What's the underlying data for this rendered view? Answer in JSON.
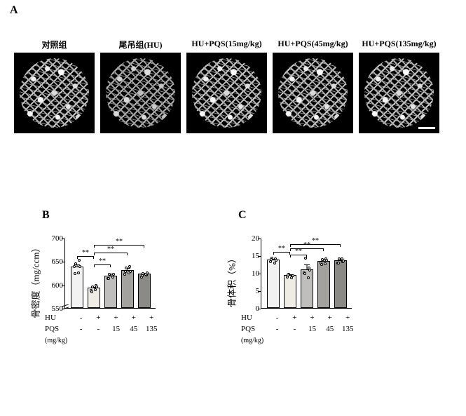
{
  "panels": {
    "A": {
      "label": "A"
    },
    "B": {
      "label": "B"
    },
    "C": {
      "label": "C"
    }
  },
  "panelA": {
    "labels": [
      "对照组",
      "尾吊组(HU)",
      "HU+PQS(15mg/kg)",
      "HU+PQS(45mg/kg)",
      "HU+PQS(135mg/kg)"
    ]
  },
  "chartB": {
    "type": "bar",
    "ylabel": "骨密度（mg/ccm）",
    "ylim": [
      550,
      700
    ],
    "yticks": [
      550,
      600,
      650,
      700
    ],
    "axis_break": true,
    "categories_hu": [
      "-",
      "+",
      "+",
      "+",
      "+"
    ],
    "categories_pqs": [
      "-",
      "-",
      "15",
      "45",
      "135"
    ],
    "row_labels": [
      "HU",
      "PQS",
      "(mg/kg)"
    ],
    "values": [
      638,
      593,
      619,
      631,
      623
    ],
    "errors": [
      6,
      4,
      4,
      6,
      3
    ],
    "bar_colors": [
      "#f2f2f2",
      "#efece6",
      "#c0bebc",
      "#a4a29f",
      "#8c8a87"
    ],
    "bar_border": "#000000",
    "scatter_points": [
      [
        646,
        654,
        640,
        626,
        625,
        640
      ],
      [
        596,
        600,
        589,
        590,
        586,
        597
      ],
      [
        624,
        617,
        614,
        622,
        614,
        623
      ],
      [
        637,
        640,
        623,
        626,
        630,
        630
      ],
      [
        625,
        622,
        618,
        624,
        621,
        627
      ]
    ],
    "sig": [
      {
        "from": 0,
        "to": 1,
        "y": 662,
        "label": "**"
      },
      {
        "from": 1,
        "to": 2,
        "y": 644,
        "label": "**"
      },
      {
        "from": 1,
        "to": 3,
        "y": 670,
        "label": "**"
      },
      {
        "from": 1,
        "to": 4,
        "y": 686,
        "label": "**"
      }
    ]
  },
  "chartC": {
    "type": "bar",
    "ylabel": "骨体积（%）",
    "ylim": [
      0,
      20
    ],
    "yticks": [
      0,
      5,
      10,
      15,
      20
    ],
    "axis_break": false,
    "categories_hu": [
      "-",
      "+",
      "+",
      "+",
      "+"
    ],
    "categories_pqs": [
      "-",
      "-",
      "15",
      "45",
      "135"
    ],
    "row_labels": [
      "HU",
      "PQS",
      "(mg/kg)"
    ],
    "values": [
      13.8,
      9.4,
      11.0,
      13.4,
      13.6
    ],
    "errors": [
      0.5,
      0.4,
      1.6,
      0.6,
      0.5
    ],
    "bar_colors": [
      "#f2f2f2",
      "#efece6",
      "#c0bebc",
      "#a4a29f",
      "#8c8a87"
    ],
    "bar_border": "#000000",
    "scatter_points": [
      [
        14.5,
        14.2,
        13.4,
        13.0,
        14.0,
        13.8
      ],
      [
        9.9,
        9.5,
        9.0,
        8.9,
        9.6,
        9.5
      ],
      [
        14.4,
        11.6,
        10.2,
        8.8,
        10.0,
        11.0
      ],
      [
        14.0,
        14.2,
        13.1,
        12.8,
        12.6,
        13.8
      ],
      [
        14.2,
        13.4,
        13.0,
        14.3,
        13.1,
        13.6
      ]
    ],
    "sig": [
      {
        "from": 0,
        "to": 1,
        "y": 16.3,
        "label": "**"
      },
      {
        "from": 1,
        "to": 2,
        "y": 15.4,
        "label": "**"
      },
      {
        "from": 1,
        "to": 3,
        "y": 17.2,
        "label": "**"
      },
      {
        "from": 1,
        "to": 4,
        "y": 18.4,
        "label": "**"
      }
    ]
  },
  "colors": {
    "background": "#ffffff",
    "axis": "#000000",
    "text": "#000000"
  }
}
